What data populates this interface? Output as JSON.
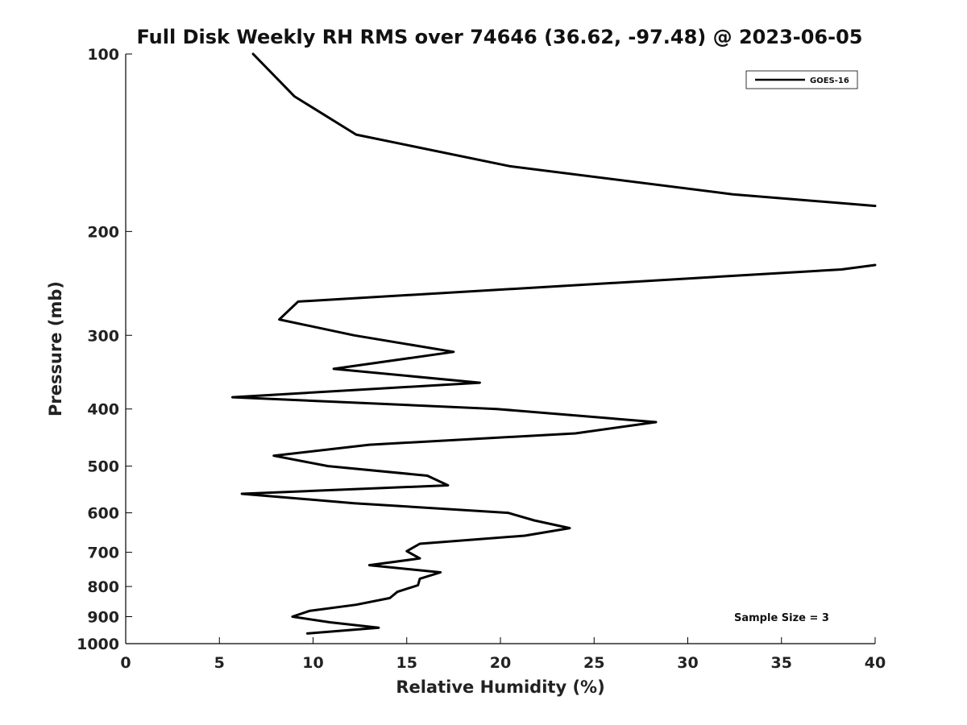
{
  "chart_data": {
    "type": "line",
    "title": "Full Disk Weekly RH RMS over 74646 (36.62, -97.48) @ 2023-06-05",
    "xlabel": "Relative Humidity (%)",
    "ylabel": "Pressure (mb)",
    "xlim": [
      0,
      40
    ],
    "ylim": [
      100,
      1000
    ],
    "y_scale": "log",
    "y_reversed": true,
    "x_ticks": [
      0,
      5,
      10,
      15,
      20,
      25,
      30,
      35,
      40
    ],
    "y_ticks": [
      100,
      200,
      300,
      400,
      500,
      600,
      700,
      800,
      900,
      1000
    ],
    "grid": false,
    "legend_position": "top-right",
    "line_color": "#000000",
    "annotation": "Sample Size = 3",
    "series": [
      {
        "name": "GOES-16",
        "segments": [
          [
            {
              "x": 6.8,
              "p": 100
            },
            {
              "x": 9.0,
              "p": 118
            },
            {
              "x": 12.3,
              "p": 137
            },
            {
              "x": 20.5,
              "p": 155
            },
            {
              "x": 32.4,
              "p": 173
            },
            {
              "x": 40.0,
              "p": 181
            }
          ],
          [
            {
              "x": 40.0,
              "p": 228
            },
            {
              "x": 38.2,
              "p": 232
            },
            {
              "x": 9.2,
              "p": 263
            },
            {
              "x": 8.2,
              "p": 282
            },
            {
              "x": 12.2,
              "p": 300
            },
            {
              "x": 17.5,
              "p": 320
            },
            {
              "x": 11.1,
              "p": 342
            },
            {
              "x": 18.9,
              "p": 361
            },
            {
              "x": 5.7,
              "p": 382
            },
            {
              "x": 19.8,
              "p": 400
            },
            {
              "x": 28.3,
              "p": 421
            },
            {
              "x": 24.0,
              "p": 440
            },
            {
              "x": 13.0,
              "p": 460
            },
            {
              "x": 7.9,
              "p": 480
            },
            {
              "x": 10.8,
              "p": 500
            },
            {
              "x": 16.1,
              "p": 519
            },
            {
              "x": 17.2,
              "p": 539
            },
            {
              "x": 6.2,
              "p": 557
            },
            {
              "x": 12.2,
              "p": 578
            },
            {
              "x": 20.4,
              "p": 600
            },
            {
              "x": 21.8,
              "p": 618
            },
            {
              "x": 23.7,
              "p": 637
            },
            {
              "x": 21.3,
              "p": 656
            },
            {
              "x": 15.7,
              "p": 677
            },
            {
              "x": 15.0,
              "p": 697
            },
            {
              "x": 15.7,
              "p": 717
            },
            {
              "x": 13.0,
              "p": 736
            },
            {
              "x": 16.8,
              "p": 757
            },
            {
              "x": 15.7,
              "p": 776
            },
            {
              "x": 15.6,
              "p": 796
            },
            {
              "x": 14.5,
              "p": 817
            },
            {
              "x": 14.1,
              "p": 837
            },
            {
              "x": 12.3,
              "p": 859
            },
            {
              "x": 9.8,
              "p": 880
            },
            {
              "x": 8.9,
              "p": 900
            },
            {
              "x": 10.9,
              "p": 920
            },
            {
              "x": 13.5,
              "p": 940
            },
            {
              "x": 9.7,
              "p": 961
            }
          ]
        ]
      }
    ]
  }
}
